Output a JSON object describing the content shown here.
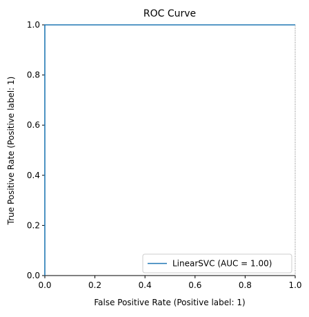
{
  "chart_data": {
    "type": "line",
    "title": "ROC Curve",
    "xlabel": "False Positive Rate (Positive label: 1)",
    "ylabel": "True Positive Rate (Positive label: 1)",
    "xlim": [
      0.0,
      1.0
    ],
    "ylim": [
      0.0,
      1.0
    ],
    "xticks": [
      0.0,
      0.2,
      0.4,
      0.6,
      0.8,
      1.0
    ],
    "yticks": [
      0.0,
      0.2,
      0.4,
      0.6,
      0.8,
      1.0
    ],
    "xtick_labels": [
      "0.0",
      "0.2",
      "0.4",
      "0.6",
      "0.8",
      "1.0"
    ],
    "ytick_labels": [
      "0.0",
      "0.2",
      "0.4",
      "0.6",
      "0.8",
      "1.0"
    ],
    "grid": false,
    "legend_position": "lower-right",
    "series": [
      {
        "name": "LinearSVC (AUC = 1.00)",
        "color": "#1f77b4",
        "x": [
          0.0,
          0.0,
          1.0
        ],
        "y": [
          0.0,
          1.0,
          1.0
        ]
      }
    ],
    "reference_line": {
      "style": "dotted",
      "color": "#555555"
    }
  }
}
